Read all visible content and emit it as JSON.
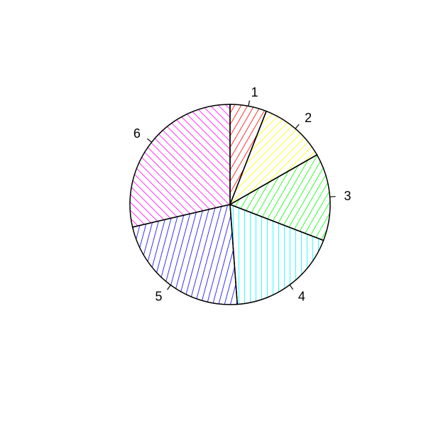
{
  "chart_data": {
    "type": "pie",
    "title": "",
    "labels": [
      "1",
      "2",
      "3",
      "4",
      "5",
      "6"
    ],
    "values": [
      1.12,
      2.06,
      2.68,
      3.42,
      4.28,
      5.44
    ],
    "colors": [
      "#ff0000",
      "#ffff00",
      "#00ff00",
      "#00ffff",
      "#0000ff",
      "#ff00ff"
    ],
    "fill_pattern": "hatched",
    "hatch_angles": [
      60,
      45,
      60,
      90,
      75,
      135
    ],
    "start_angle_deg": 90,
    "direction": "clockwise"
  }
}
